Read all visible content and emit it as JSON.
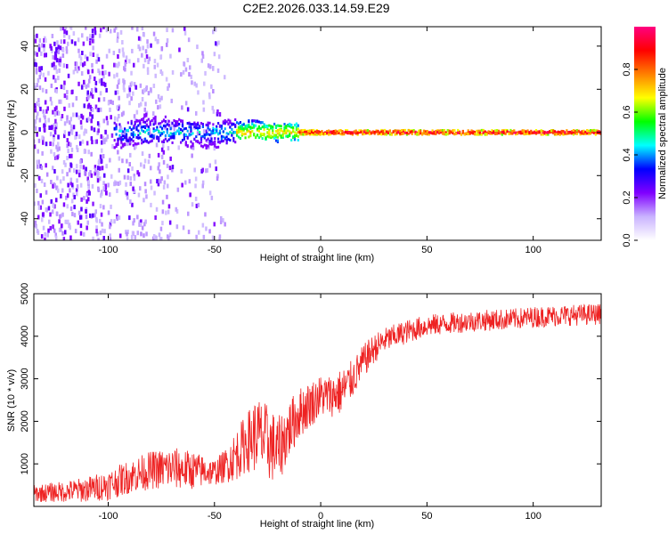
{
  "title": "C2E2.2026.033.14.59.E29",
  "chart_data": [
    {
      "type": "heatmap",
      "xlabel": "Height of straight line (km)",
      "ylabel": "Frequency (Hz)",
      "xlim": [
        -135,
        132
      ],
      "ylim": [
        -50,
        49
      ],
      "xticks": [
        -100,
        -50,
        0,
        50,
        100
      ],
      "xtick_labels": [
        "-100",
        "-50",
        "0",
        "50",
        "100"
      ],
      "yticks": [
        -40,
        -20,
        0,
        20,
        40
      ],
      "ytick_labels": [
        "-40",
        "-20",
        "0",
        "20",
        "40"
      ],
      "description_values": {
        "ridge_frequency_hz": 0,
        "ridge_start_km": -97,
        "noise_region_km": [
          -135,
          -55
        ]
      },
      "colorbar": {
        "label": "Normalized spectral amplitude",
        "range": [
          0.0,
          1.0
        ],
        "ticks": [
          0.0,
          0.2,
          0.4,
          0.6,
          0.8
        ],
        "tick_labels": [
          "0.0",
          "0.2",
          "0.4",
          "0.6",
          "0.8"
        ],
        "colors": [
          "#ffffff",
          "#c9b3ff",
          "#8000ff",
          "#0000ff",
          "#00ffff",
          "#00ff00",
          "#ffff00",
          "#ff8000",
          "#ff0000",
          "#ff0080"
        ]
      }
    },
    {
      "type": "line",
      "xlabel": "Height of straight line (km)",
      "ylabel": "SNR (10 * v/v)",
      "xlim": [
        -135,
        132
      ],
      "ylim": [
        0,
        5000
      ],
      "xticks": [
        -100,
        -50,
        0,
        50,
        100
      ],
      "xtick_labels": [
        "-100",
        "-50",
        "0",
        "50",
        "100"
      ],
      "yticks": [
        1000,
        2000,
        3000,
        4000,
        5000
      ],
      "ytick_labels": [
        "1000",
        "2000",
        "3000",
        "4000",
        "5000"
      ],
      "series": [
        {
          "name": "SNR",
          "color": "#ee2222",
          "x": [
            -135,
            -120,
            -110,
            -100,
            -90,
            -80,
            -70,
            -60,
            -50,
            -45,
            -40,
            -35,
            -30,
            -25,
            -20,
            -15,
            -10,
            -5,
            0,
            5,
            10,
            15,
            20,
            25,
            30,
            40,
            50,
            60,
            70,
            80,
            90,
            100,
            110,
            120,
            132
          ],
          "y": [
            300,
            350,
            400,
            500,
            700,
            850,
            900,
            850,
            800,
            950,
            1200,
            1500,
            1700,
            1500,
            1300,
            1800,
            2200,
            2400,
            2600,
            2600,
            2700,
            3000,
            3400,
            3700,
            3900,
            4100,
            4250,
            4300,
            4350,
            4380,
            4400,
            4450,
            4480,
            4500,
            4520
          ],
          "noise_amplitude": [
            200,
            250,
            300,
            350,
            400,
            450,
            500,
            450,
            300,
            400,
            600,
            700,
            900,
            900,
            800,
            700,
            600,
            550,
            500,
            500,
            550,
            450,
            400,
            350,
            300,
            280,
            260,
            250,
            250,
            250,
            250,
            250,
            250,
            250,
            250
          ]
        }
      ]
    }
  ]
}
